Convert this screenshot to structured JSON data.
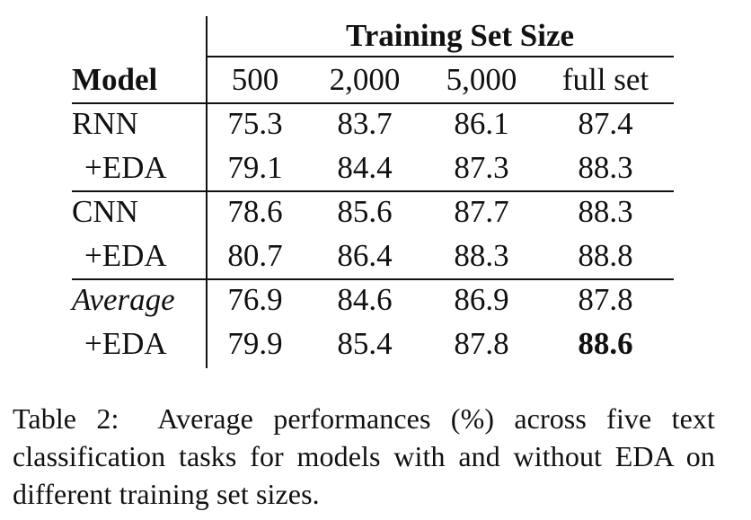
{
  "table": {
    "group_header": "Training Set Size",
    "model_header": "Model",
    "columns": [
      "500",
      "2,000",
      "5,000",
      "full set"
    ],
    "rows": [
      {
        "label": "RNN",
        "values": [
          "75.3",
          "83.7",
          "86.1",
          "87.4"
        ]
      },
      {
        "label": "+EDA",
        "values": [
          "79.1",
          "84.4",
          "87.3",
          "88.3"
        ]
      },
      {
        "label": "CNN",
        "values": [
          "78.6",
          "85.6",
          "87.7",
          "88.3"
        ]
      },
      {
        "label": "+EDA",
        "values": [
          "80.7",
          "86.4",
          "88.3",
          "88.8"
        ]
      },
      {
        "label": "Average",
        "values": [
          "76.9",
          "84.6",
          "86.9",
          "87.8"
        ]
      },
      {
        "label": "+EDA",
        "values": [
          "79.9",
          "85.4",
          "87.8",
          "88.6"
        ]
      }
    ]
  },
  "caption": {
    "label": "Table 2:",
    "text": "Average performances (%) across five text classification tasks for models with and without EDA on different training set sizes."
  }
}
